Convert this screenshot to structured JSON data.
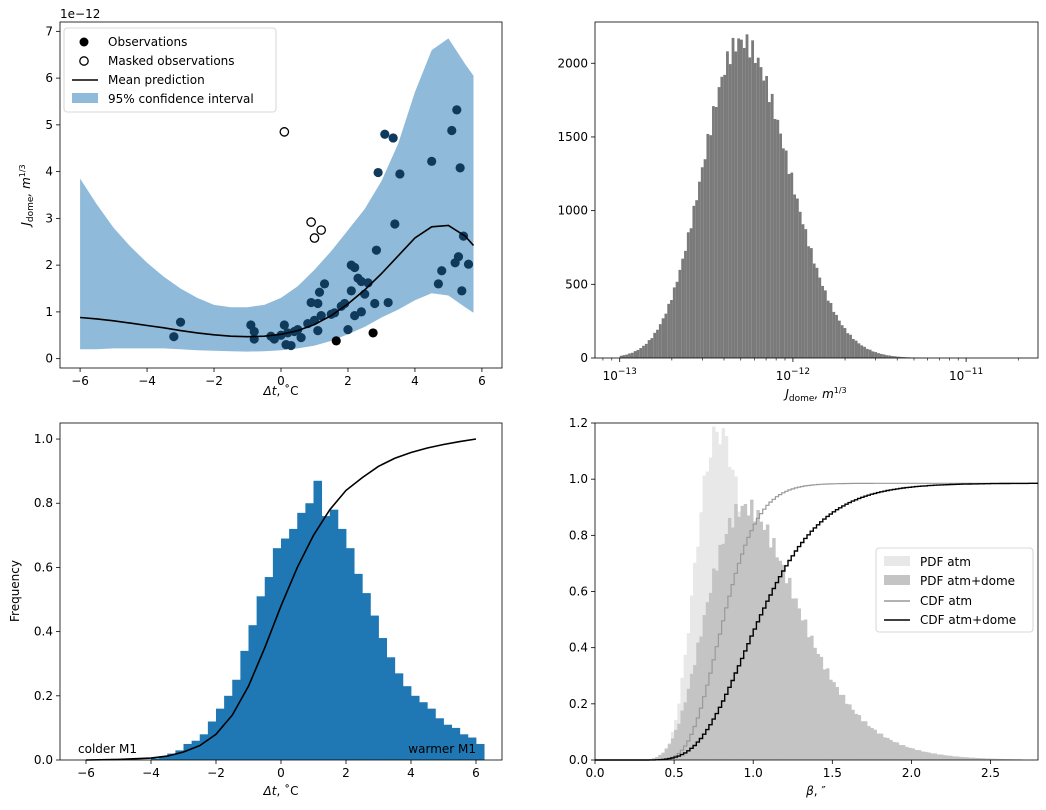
{
  "chart_data": [
    {
      "id": "gp",
      "type": "scatter",
      "exponent_label": "1e−12",
      "xlabel_main": "Δt",
      "xlabel_unit": ", ˚C",
      "ylabel_main": "J",
      "ylabel_sub": "dome",
      "ylabel_unit": ", m",
      "ylabel_sup": "1/3",
      "xlim": [
        -6.6,
        6.6
      ],
      "ylim": [
        -0.2,
        7.2
      ],
      "xticks": [
        -6,
        -4,
        -2,
        0,
        2,
        4,
        6
      ],
      "xtick_labels": [
        "−6",
        "−4",
        "−2",
        "0",
        "2",
        "4",
        "6"
      ],
      "yticks": [
        0,
        1,
        2,
        3,
        4,
        5,
        6,
        7
      ],
      "ytick_labels": [
        "0",
        "1",
        "2",
        "3",
        "4",
        "5",
        "6",
        "7"
      ],
      "legend": [
        "Observations",
        "Masked observations",
        "Mean prediction",
        "95% confidence interval"
      ],
      "colors": {
        "fill": "#8fbad9",
        "obs": "#0f3a5c",
        "obs_black": "#000000",
        "mean": "#000000"
      },
      "mean": {
        "x": [
          -6,
          -5.5,
          -5,
          -4.5,
          -4,
          -3.5,
          -3,
          -2.5,
          -2,
          -1.5,
          -1,
          -0.5,
          0,
          0.5,
          1,
          1.5,
          2,
          2.5,
          3,
          3.5,
          4,
          4.5,
          5,
          5.5,
          5.75
        ],
        "y": [
          0.88,
          0.85,
          0.81,
          0.76,
          0.71,
          0.66,
          0.6,
          0.55,
          0.51,
          0.48,
          0.47,
          0.48,
          0.52,
          0.6,
          0.73,
          0.92,
          1.17,
          1.47,
          1.82,
          2.2,
          2.58,
          2.82,
          2.85,
          2.62,
          2.42
        ]
      },
      "ci_upper": {
        "x": [
          -6,
          -5.5,
          -5,
          -4.5,
          -4,
          -3.5,
          -3,
          -2.5,
          -2,
          -1.5,
          -1,
          -0.5,
          0,
          0.5,
          1,
          1.5,
          2,
          2.5,
          3,
          3.5,
          4,
          4.5,
          5,
          5.5,
          5.75
        ],
        "y": [
          3.85,
          3.3,
          2.8,
          2.4,
          2.05,
          1.75,
          1.5,
          1.3,
          1.15,
          1.1,
          1.1,
          1.15,
          1.3,
          1.55,
          1.9,
          2.3,
          2.75,
          3.2,
          3.8,
          4.6,
          5.7,
          6.6,
          6.85,
          6.3,
          6.05
        ]
      },
      "ci_lower": {
        "x": [
          -6,
          -5.5,
          -5,
          -4.5,
          -4,
          -3.5,
          -3,
          -2.5,
          -2,
          -1.5,
          -1,
          -0.5,
          0,
          0.5,
          1,
          1.5,
          2,
          2.5,
          3,
          3.5,
          4,
          4.5,
          5,
          5.5,
          5.75
        ],
        "y": [
          0.2,
          0.2,
          0.22,
          0.22,
          0.22,
          0.22,
          0.2,
          0.18,
          0.17,
          0.16,
          0.15,
          0.16,
          0.18,
          0.22,
          0.28,
          0.38,
          0.52,
          0.68,
          0.88,
          1.05,
          1.25,
          1.4,
          1.35,
          1.1,
          0.98
        ]
      },
      "observations": {
        "x": [
          -3.2,
          -3.0,
          -0.9,
          -0.8,
          -0.8,
          -0.3,
          -0.2,
          0.0,
          0.1,
          0.15,
          0.2,
          0.3,
          0.4,
          0.5,
          0.6,
          0.8,
          0.9,
          1.0,
          1.1,
          1.1,
          1.15,
          1.2,
          1.3,
          1.5,
          1.6,
          1.8,
          1.9,
          2.0,
          2.1,
          2.1,
          2.2,
          2.2,
          2.3,
          2.4,
          2.4,
          2.5,
          2.6,
          2.8,
          2.85,
          2.9,
          3.1,
          3.2,
          3.35,
          3.4,
          3.55,
          4.5,
          4.7,
          4.8,
          5.1,
          5.2,
          5.25,
          5.3,
          5.35,
          5.4,
          5.45,
          5.6
        ],
        "y": [
          0.47,
          0.78,
          0.72,
          0.58,
          0.42,
          0.48,
          0.42,
          0.5,
          0.72,
          0.3,
          0.55,
          0.28,
          0.58,
          0.62,
          0.45,
          0.75,
          1.2,
          0.82,
          1.18,
          0.6,
          1.42,
          0.92,
          1.6,
          0.95,
          0.98,
          1.12,
          1.18,
          0.62,
          1.45,
          2.0,
          0.92,
          1.95,
          1.72,
          1.65,
          1.0,
          1.38,
          1.62,
          1.18,
          2.32,
          3.98,
          4.8,
          1.2,
          4.72,
          2.88,
          3.95,
          4.22,
          1.6,
          1.88,
          4.88,
          2.05,
          5.32,
          2.18,
          4.08,
          1.45,
          2.62,
          2.02
        ]
      },
      "observations_black": {
        "x": [
          1.65,
          2.75
        ],
        "y": [
          0.38,
          0.55
        ]
      },
      "masked": {
        "x": [
          0.1,
          0.9,
          1.0,
          1.2
        ],
        "y": [
          4.85,
          2.92,
          2.58,
          2.75
        ]
      }
    },
    {
      "id": "jhist",
      "type": "bar",
      "xscale": "log",
      "xlabel_main": "J",
      "xlabel_sub": "dome",
      "xlabel_unit": ", m",
      "xlabel_sup": "1/3",
      "xlim": [
        7.2e-14,
        2.6e-11
      ],
      "ylim": [
        0,
        2280
      ],
      "xticks": [
        1e-13,
        1e-12,
        1e-11
      ],
      "xtick_labels": [
        "10",
        "10",
        "10"
      ],
      "xtick_sups": [
        "−13",
        "−12",
        "−11"
      ],
      "yticks": [
        0,
        500,
        1000,
        1500,
        2000
      ],
      "ytick_labels": [
        "0",
        "500",
        "1000",
        "1500",
        "2000"
      ],
      "color": "#7a7a7a",
      "log_mean": -12.3,
      "log_sd": 0.22,
      "peak": 2150
    },
    {
      "id": "dthist",
      "type": "bar",
      "xlabel_main": "Δt",
      "xlabel_unit": ", ˚C",
      "ylabel": "Frequency",
      "xlim": [
        -6.8,
        6.8
      ],
      "ylim": [
        0,
        1.05
      ],
      "xticks": [
        -6,
        -4,
        -2,
        0,
        2,
        4,
        6
      ],
      "xtick_labels": [
        "−6",
        "−4",
        "−2",
        "0",
        "2",
        "4",
        "6"
      ],
      "yticks": [
        0,
        0.2,
        0.4,
        0.6,
        0.8,
        1.0
      ],
      "ytick_labels": [
        "0.0",
        "0.2",
        "0.4",
        "0.6",
        "0.8",
        "1.0"
      ],
      "color": "#1f77b4",
      "annotations": [
        "colder M1",
        "warmer M1"
      ],
      "bins_start": -4.0,
      "bins_width": 0.25,
      "bar_values": [
        0.005,
        0.01,
        0.02,
        0.03,
        0.05,
        0.06,
        0.08,
        0.12,
        0.16,
        0.2,
        0.25,
        0.34,
        0.42,
        0.51,
        0.57,
        0.66,
        0.69,
        0.72,
        0.77,
        0.8,
        0.87,
        0.76,
        0.78,
        0.72,
        0.66,
        0.58,
        0.52,
        0.45,
        0.38,
        0.32,
        0.27,
        0.23,
        0.2,
        0.18,
        0.16,
        0.13,
        0.11,
        0.1,
        0.08,
        0.07,
        0.05
      ],
      "cdf": {
        "x": [
          -6,
          -5,
          -4,
          -3.5,
          -3,
          -2.5,
          -2,
          -1.5,
          -1,
          -0.5,
          0,
          0.5,
          1,
          1.5,
          2,
          2.5,
          3,
          3.5,
          4,
          4.5,
          5,
          5.5,
          6
        ],
        "y": [
          0,
          0.002,
          0.006,
          0.012,
          0.025,
          0.045,
          0.08,
          0.14,
          0.23,
          0.35,
          0.48,
          0.6,
          0.7,
          0.78,
          0.84,
          0.88,
          0.915,
          0.94,
          0.958,
          0.972,
          0.983,
          0.992,
          1.0
        ]
      }
    },
    {
      "id": "beta",
      "type": "bar",
      "xlabel_main": "β",
      "xlabel_unit": ", ″",
      "xlim": [
        0.0,
        2.8
      ],
      "ylim": [
        0,
        1.2
      ],
      "xticks": [
        0.0,
        0.5,
        1.0,
        1.5,
        2.0,
        2.5
      ],
      "xtick_labels": [
        "0.0",
        "0.5",
        "1.0",
        "1.5",
        "2.0",
        "2.5"
      ],
      "yticks": [
        0,
        0.2,
        0.4,
        0.6,
        0.8,
        1.0,
        1.2
      ],
      "ytick_labels": [
        "0.0",
        "0.2",
        "0.4",
        "0.6",
        "0.8",
        "1.0",
        "1.2"
      ],
      "legend": [
        "PDF atm",
        "PDF atm+dome",
        "CDF atm",
        "CDF atm+dome"
      ],
      "colors": {
        "pdf_atm": "#e8e8e8",
        "pdf_dome": "#c4c4c4",
        "cdf_atm": "#999999",
        "cdf_dome": "#000000"
      },
      "pdf_atm": {
        "mu": -0.2,
        "sigma": 0.21,
        "peak": 1.17
      },
      "pdf_dome": {
        "mu": 0.04,
        "sigma": 0.3,
        "peak": 0.9
      },
      "bin_width": 0.02
    }
  ]
}
